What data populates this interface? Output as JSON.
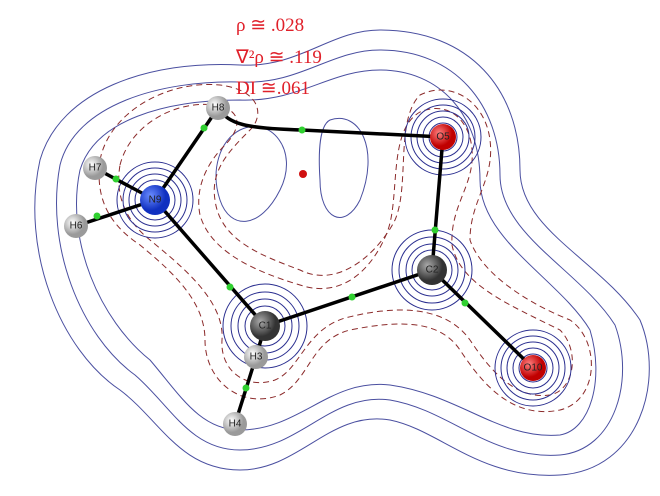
{
  "annotations": {
    "rho": "ρ ≅ .028",
    "laplacian": "∇²ρ ≅ .119",
    "di": "DI ≅.061"
  },
  "atoms": [
    {
      "label": "H8"
    },
    {
      "label": "O5"
    },
    {
      "label": "H7"
    },
    {
      "label": "N9"
    },
    {
      "label": "H6"
    },
    {
      "label": "C2"
    },
    {
      "label": "C1"
    },
    {
      "label": "H3"
    },
    {
      "label": "O10"
    },
    {
      "label": "H4"
    }
  ]
}
